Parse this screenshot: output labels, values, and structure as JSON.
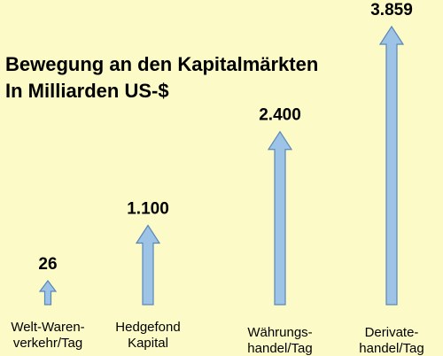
{
  "chart_data": {
    "type": "bar",
    "title": "Bewegung an den Kapitalmärkten",
    "subtitle": "In Milliarden US-$",
    "categories": [
      [
        "Welt-Waren-",
        "verkehr/Tag"
      ],
      [
        "Hedgefond",
        "Kapital"
      ],
      [
        "Währungs-",
        "handel/Tag"
      ],
      [
        "Derivate-",
        "handel/Tag"
      ]
    ],
    "values": [
      26,
      1100,
      2400,
      3859
    ],
    "value_labels": [
      "26",
      "1.100",
      "2.400",
      "3.859"
    ],
    "mark_style": "arrow",
    "grid": false,
    "legend": "none"
  },
  "colors": {
    "background": "#FCFBC7",
    "arrow_fill": "#9DC3E6",
    "arrow_stroke": "#5B86B8",
    "text": "#000000"
  }
}
